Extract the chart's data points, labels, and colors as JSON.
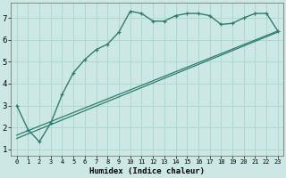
{
  "xlabel": "Humidex (Indice chaleur)",
  "ylabel": "",
  "bg_color": "#cce8e4",
  "grid_color": "#b0d8d0",
  "line_color": "#2e7d6e",
  "xlim": [
    -0.5,
    23.5
  ],
  "ylim": [
    0.7,
    7.7
  ],
  "yticks": [
    1,
    2,
    3,
    4,
    5,
    6,
    7
  ],
  "xticks": [
    0,
    1,
    2,
    3,
    4,
    5,
    6,
    7,
    8,
    9,
    10,
    11,
    12,
    13,
    14,
    15,
    16,
    17,
    18,
    19,
    20,
    21,
    22,
    23
  ],
  "xtick_labels": [
    "0",
    "1",
    "2",
    "3",
    "4",
    "5",
    "6",
    "7",
    "8",
    "9",
    "10",
    "11",
    "12",
    "13",
    "14",
    "15",
    "16",
    "17",
    "18",
    "19",
    "20",
    "21",
    "22",
    "23"
  ],
  "series1_x": [
    0,
    1,
    2,
    3,
    4,
    5,
    6,
    7,
    8,
    9,
    10,
    11,
    12,
    13,
    14,
    15,
    16,
    17,
    18,
    19,
    20,
    21,
    22,
    23
  ],
  "series1_y": [
    3.0,
    1.9,
    1.35,
    2.2,
    3.5,
    4.5,
    5.1,
    5.55,
    5.8,
    6.35,
    7.3,
    7.2,
    6.85,
    6.85,
    7.1,
    7.2,
    7.2,
    7.1,
    6.7,
    6.75,
    7.0,
    7.2,
    7.2,
    6.4
  ],
  "series2_x": [
    0,
    23
  ],
  "series2_y": [
    1.5,
    6.35
  ],
  "series3_x": [
    0,
    23
  ],
  "series3_y": [
    1.65,
    6.4
  ],
  "xlabel_fontsize": 6.5,
  "ytick_fontsize": 6.5,
  "xtick_fontsize": 5.0
}
